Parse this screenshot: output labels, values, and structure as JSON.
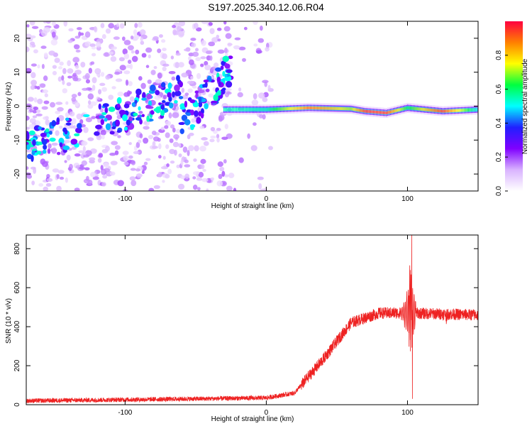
{
  "title": "S197.2025.340.12.06.R04",
  "chart_data": [
    {
      "type": "heatmap",
      "xlabel": "Height of straight line (km)",
      "ylabel": "Frequency (Hz)",
      "xlim": [
        -170,
        150
      ],
      "ylim": [
        -25,
        25
      ],
      "xticks": [
        -100,
        0,
        100
      ],
      "yticks": [
        -20,
        -10,
        0,
        10,
        20
      ],
      "colorbar": {
        "label": "Normalized spectral amplitude",
        "range": [
          0,
          1
        ],
        "ticks": [
          0.0,
          0.2,
          0.4,
          0.6,
          0.8
        ],
        "colormap": [
          "#ffffff",
          "#d9b3ff",
          "#8000ff",
          "#2020ff",
          "#00ffff",
          "#00ff40",
          "#ffff00",
          "#ff8000",
          "#ff0040"
        ]
      },
      "ridge": [
        {
          "x": 0,
          "y": -1,
          "amp": 0.55
        },
        {
          "x": 30,
          "y": -0.5,
          "amp": 0.9
        },
        {
          "x": 60,
          "y": -0.8,
          "amp": 0.7
        },
        {
          "x": 70,
          "y": -1.5,
          "amp": 0.95
        },
        {
          "x": 85,
          "y": -2,
          "amp": 0.95
        },
        {
          "x": 100,
          "y": -0.5,
          "amp": 0.6
        },
        {
          "x": 125,
          "y": -1.5,
          "amp": 0.95
        },
        {
          "x": 150,
          "y": -1,
          "amp": 0.5
        }
      ]
    },
    {
      "type": "line",
      "xlabel": "Height of straight line (km)",
      "ylabel": "SNR (10 * v/v)",
      "xlim": [
        -170,
        150
      ],
      "ylim": [
        0,
        870
      ],
      "xticks": [
        -100,
        0,
        100
      ],
      "yticks": [
        0,
        200,
        400,
        600,
        800
      ],
      "color": "#ee2222",
      "envelope": [
        {
          "x": -170,
          "y": 20
        },
        {
          "x": -50,
          "y": 30
        },
        {
          "x": 0,
          "y": 35
        },
        {
          "x": 20,
          "y": 60
        },
        {
          "x": 40,
          "y": 230
        },
        {
          "x": 60,
          "y": 420
        },
        {
          "x": 80,
          "y": 470
        },
        {
          "x": 100,
          "y": 470
        },
        {
          "x": 150,
          "y": 460
        }
      ],
      "spikes": [
        {
          "x": 101,
          "y": 560
        },
        {
          "x": 102,
          "y": 690
        },
        {
          "x": 103,
          "y": 870
        },
        {
          "x": 103.5,
          "y": 30
        }
      ]
    }
  ]
}
